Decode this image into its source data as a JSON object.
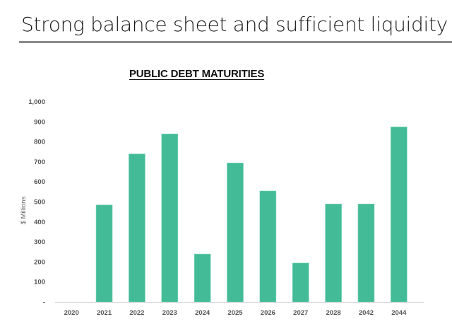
{
  "slide": {
    "title": "Strong balance sheet and sufficient liquidity"
  },
  "chart_data": {
    "type": "bar",
    "title": "PUBLIC DEBT MATURITIES",
    "xlabel": "",
    "ylabel": "$ Millions",
    "categories": [
      "2020",
      "2021",
      "2022",
      "2023",
      "2024",
      "2025",
      "2026",
      "2027",
      "2028",
      "2042",
      "2044"
    ],
    "values": [
      0,
      485,
      740,
      840,
      240,
      695,
      555,
      195,
      490,
      490,
      875
    ],
    "ylim": [
      0,
      1000
    ],
    "yticks": [
      0,
      100,
      200,
      300,
      400,
      500,
      600,
      700,
      800,
      900,
      1000
    ],
    "ytick_labels": [
      "-",
      "100",
      "200",
      "300",
      "400",
      "500",
      "600",
      "700",
      "800",
      "900",
      "1,000"
    ],
    "grid": false,
    "legend": "none",
    "bar_color": "#43BB96"
  }
}
